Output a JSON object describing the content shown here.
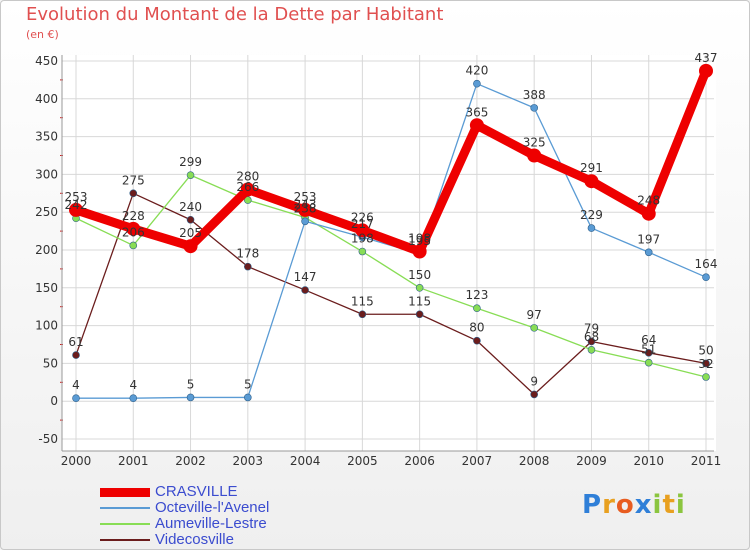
{
  "header": {
    "title": "Evolution du Montant de la Dette par Habitant",
    "unit": "(en €)"
  },
  "logo": {
    "text": "Proxiti"
  },
  "chart_data": {
    "type": "line",
    "title": "Evolution du Montant de la Dette par Habitant",
    "subtitle": "(en €)",
    "x": [
      "2000",
      "2001",
      "2002",
      "2003",
      "2004",
      "2005",
      "2006",
      "2007",
      "2008",
      "2009",
      "2010",
      "2011"
    ],
    "ylim": [
      -50,
      450
    ],
    "yticks": [
      -50,
      0,
      50,
      100,
      150,
      200,
      250,
      300,
      350,
      400,
      450
    ],
    "grid": true,
    "legend_position": "bottom-left",
    "series": [
      {
        "name": "CRASVILLE",
        "color": "#ee0000",
        "values": [
          253,
          228,
          205,
          280,
          253,
          226,
          198,
          365,
          325,
          291,
          248,
          437
        ]
      },
      {
        "name": "Octeville-l'Avenel",
        "color": "#5a9bd4",
        "values": [
          4,
          4,
          5,
          5,
          238,
          217,
          195,
          420,
          388,
          229,
          197,
          164
        ]
      },
      {
        "name": "Aumeville-Lestre",
        "color": "#88dd55",
        "values": [
          242,
          206,
          299,
          266,
          243,
          198,
          150,
          123,
          97,
          68,
          51,
          32
        ]
      },
      {
        "name": "Videcosville",
        "color": "#6b1d1d",
        "values": [
          61,
          275,
          240,
          178,
          147,
          115,
          115,
          80,
          9,
          79,
          64,
          50
        ]
      }
    ]
  }
}
